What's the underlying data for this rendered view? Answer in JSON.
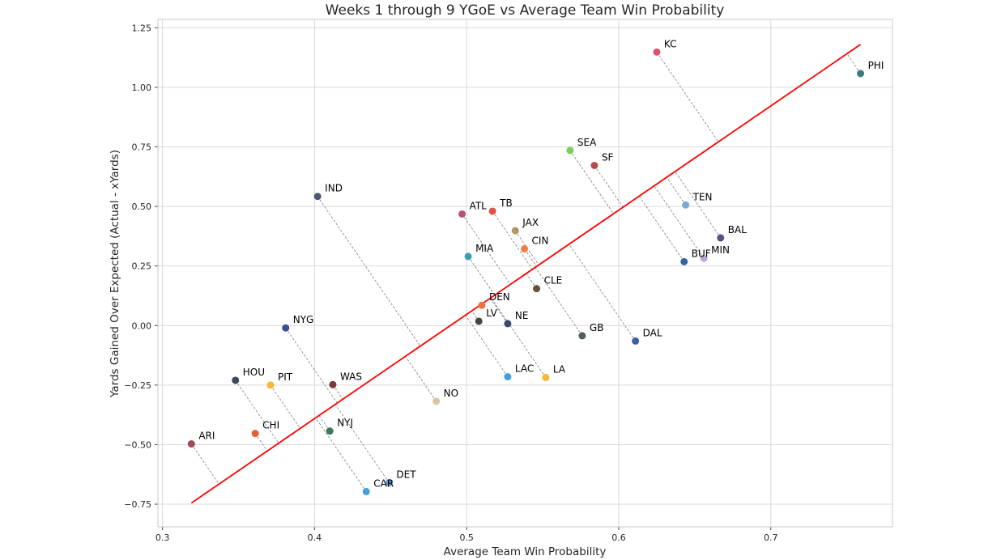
{
  "chart_data": {
    "type": "scatter",
    "title": "Weeks 1 through 9 YGoE vs Average Team Win Probability",
    "xlabel": "Average Team Win Probability",
    "ylabel": "Yards Gained Over Expected (Actual - xYards)",
    "xlim": [
      0.297,
      0.78
    ],
    "ylim": [
      -0.845,
      1.285
    ],
    "xticks": [
      0.3,
      0.4,
      0.5,
      0.6,
      0.7
    ],
    "xtick_labels": [
      "0.3",
      "0.4",
      "0.5",
      "0.6",
      "0.7"
    ],
    "yticks": [
      -0.75,
      -0.5,
      -0.25,
      0.0,
      0.25,
      0.5,
      0.75,
      1.0,
      1.25
    ],
    "ytick_labels": [
      "−0.75",
      "−0.50",
      "−0.25",
      "0.00",
      "0.25",
      "0.50",
      "0.75",
      "1.00",
      "1.25"
    ],
    "grid": true,
    "trend_line": {
      "color": "#ff0000",
      "start": [
        0.319,
        -0.745
      ],
      "end": [
        0.759,
        1.18
      ]
    },
    "points": [
      {
        "team": "KC",
        "x": 0.625,
        "y": 1.148,
        "color": "#e0526a"
      },
      {
        "team": "PHI",
        "x": 0.759,
        "y": 1.058,
        "color": "#3d7b7b"
      },
      {
        "team": "SEA",
        "x": 0.568,
        "y": 0.735,
        "color": "#7fcc5a"
      },
      {
        "team": "SF",
        "x": 0.584,
        "y": 0.672,
        "color": "#b84a4a"
      },
      {
        "team": "IND",
        "x": 0.402,
        "y": 0.542,
        "color": "#4a5a78"
      },
      {
        "team": "TEN",
        "x": 0.644,
        "y": 0.506,
        "color": "#7ba7d9"
      },
      {
        "team": "ATL",
        "x": 0.497,
        "y": 0.468,
        "color": "#b85070"
      },
      {
        "team": "TB",
        "x": 0.517,
        "y": 0.48,
        "color": "#e0524a"
      },
      {
        "team": "JAX",
        "x": 0.532,
        "y": 0.398,
        "color": "#b09860"
      },
      {
        "team": "BAL",
        "x": 0.667,
        "y": 0.368,
        "color": "#5a5088"
      },
      {
        "team": "CIN",
        "x": 0.538,
        "y": 0.322,
        "color": "#f07a4a"
      },
      {
        "team": "MIA",
        "x": 0.501,
        "y": 0.29,
        "color": "#3aa0b0"
      },
      {
        "team": "BUF",
        "x": 0.643,
        "y": 0.268,
        "color": "#3a60a8"
      },
      {
        "team": "MIN",
        "x": 0.656,
        "y": 0.282,
        "color": "#b8a8d8"
      },
      {
        "team": "CLE",
        "x": 0.546,
        "y": 0.155,
        "color": "#6a5038"
      },
      {
        "team": "DEN",
        "x": 0.51,
        "y": 0.085,
        "color": "#f07040"
      },
      {
        "team": "LV",
        "x": 0.508,
        "y": 0.018,
        "color": "#444444"
      },
      {
        "team": "NE",
        "x": 0.527,
        "y": 0.008,
        "color": "#3a4a6a"
      },
      {
        "team": "GB",
        "x": 0.576,
        "y": -0.043,
        "color": "#506058"
      },
      {
        "team": "DAL",
        "x": 0.611,
        "y": -0.065,
        "color": "#3a60a8"
      },
      {
        "team": "NYG",
        "x": 0.381,
        "y": -0.01,
        "color": "#3a5090"
      },
      {
        "team": "LAC",
        "x": 0.527,
        "y": -0.215,
        "color": "#40a0d8"
      },
      {
        "team": "LA",
        "x": 0.552,
        "y": -0.218,
        "color": "#f5b830"
      },
      {
        "team": "HOU",
        "x": 0.348,
        "y": -0.23,
        "color": "#3a4a5a"
      },
      {
        "team": "PIT",
        "x": 0.371,
        "y": -0.25,
        "color": "#f5b830"
      },
      {
        "team": "WAS",
        "x": 0.412,
        "y": -0.248,
        "color": "#7a3a3a"
      },
      {
        "team": "NO",
        "x": 0.48,
        "y": -0.318,
        "color": "#d8c8a0"
      },
      {
        "team": "NYJ",
        "x": 0.41,
        "y": -0.443,
        "color": "#3a7a5a"
      },
      {
        "team": "CHI",
        "x": 0.361,
        "y": -0.453,
        "color": "#e0603a"
      },
      {
        "team": "ARI",
        "x": 0.319,
        "y": -0.497,
        "color": "#a04a5a"
      },
      {
        "team": "DET",
        "x": 0.449,
        "y": -0.66,
        "color": "#5a90c8"
      },
      {
        "team": "CAR",
        "x": 0.434,
        "y": -0.697,
        "color": "#40a0d8"
      }
    ]
  }
}
